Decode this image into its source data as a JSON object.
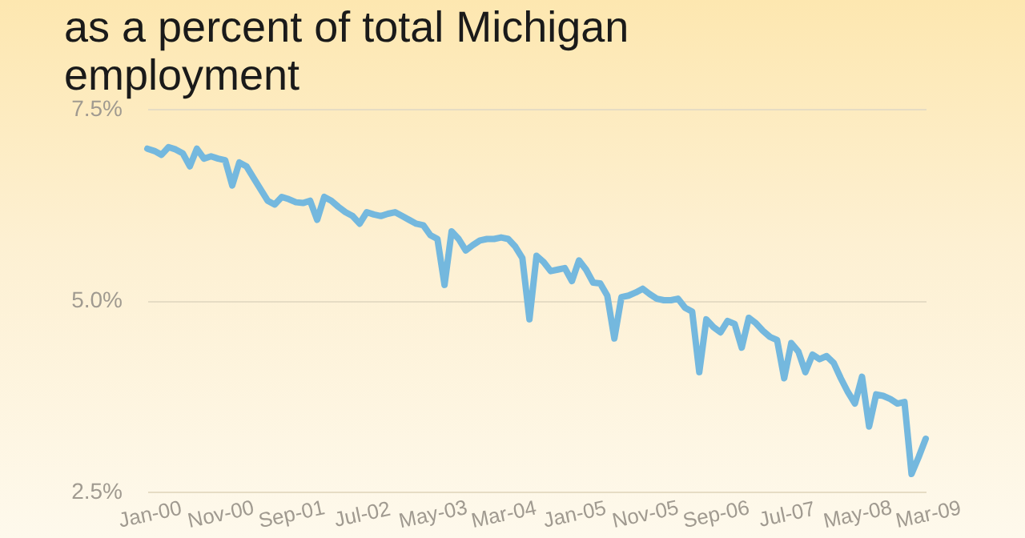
{
  "chart_data": {
    "type": "line",
    "title": "as a percent of total Michigan\nemployment",
    "categories": [
      "Jan-00",
      null,
      null,
      null,
      null,
      null,
      null,
      null,
      null,
      null,
      "Nov-00",
      null,
      null,
      null,
      null,
      null,
      null,
      null,
      null,
      null,
      "Sep-01",
      null,
      null,
      null,
      null,
      null,
      null,
      null,
      null,
      null,
      "Jul-02",
      null,
      null,
      null,
      null,
      null,
      null,
      null,
      null,
      null,
      "May-03",
      null,
      null,
      null,
      null,
      null,
      null,
      null,
      null,
      null,
      "Mar-04",
      null,
      null,
      null,
      null,
      null,
      null,
      null,
      null,
      null,
      "Jan-05",
      null,
      null,
      null,
      null,
      null,
      null,
      null,
      null,
      null,
      "Nov-05",
      null,
      null,
      null,
      null,
      null,
      null,
      null,
      null,
      null,
      "Sep-06",
      null,
      null,
      null,
      null,
      null,
      null,
      null,
      null,
      null,
      "Jul-07",
      null,
      null,
      null,
      null,
      null,
      null,
      null,
      null,
      null,
      "May-08",
      null,
      null,
      null,
      null,
      null,
      null,
      null,
      null,
      null,
      "Mar-09"
    ],
    "series": [
      {
        "color": "#74b8de",
        "values": [
          6.98,
          6.95,
          6.9,
          7.0,
          6.97,
          6.92,
          6.75,
          6.98,
          6.85,
          6.88,
          6.85,
          6.83,
          6.5,
          6.8,
          6.75,
          6.6,
          6.45,
          6.3,
          6.25,
          6.35,
          6.32,
          6.28,
          6.27,
          6.3,
          6.05,
          6.35,
          6.3,
          6.22,
          6.15,
          6.1,
          6.0,
          6.15,
          6.12,
          6.1,
          6.13,
          6.15,
          6.1,
          6.05,
          6.0,
          5.98,
          5.85,
          5.8,
          5.2,
          5.9,
          5.8,
          5.65,
          5.72,
          5.78,
          5.8,
          5.8,
          5.82,
          5.8,
          5.7,
          5.55,
          4.75,
          5.58,
          5.5,
          5.38,
          5.4,
          5.42,
          5.25,
          5.52,
          5.4,
          5.23,
          5.22,
          5.06,
          4.5,
          5.04,
          5.06,
          5.1,
          5.15,
          5.08,
          5.02,
          5.0,
          5.0,
          5.02,
          4.9,
          4.85,
          4.06,
          4.75,
          4.65,
          4.58,
          4.73,
          4.69,
          4.38,
          4.77,
          4.7,
          4.6,
          4.52,
          4.48,
          3.98,
          4.44,
          4.33,
          4.06,
          4.29,
          4.23,
          4.27,
          4.18,
          3.98,
          3.8,
          3.65,
          4.0,
          3.35,
          3.77,
          3.75,
          3.71,
          3.65,
          3.67,
          2.73,
          2.95,
          3.19
        ]
      }
    ],
    "ylim": [
      2.5,
      7.5
    ],
    "yticks": [
      {
        "value": 2.5,
        "label": "2.5%"
      },
      {
        "value": 5.0,
        "label": "5.0%"
      },
      {
        "value": 7.5,
        "label": "7.5%"
      }
    ],
    "grid": "y",
    "marker": "none",
    "line_style": "solid"
  }
}
